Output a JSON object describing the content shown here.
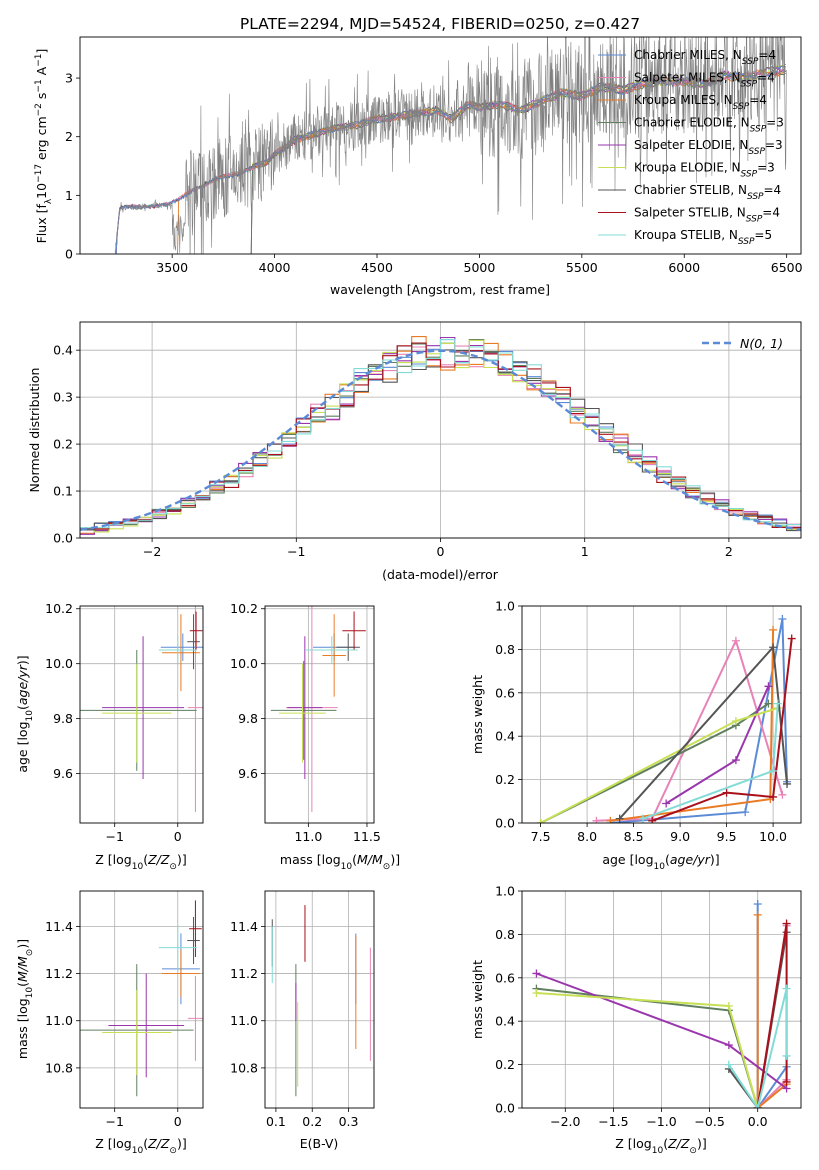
{
  "figure": {
    "suptitle": "PLATE=2294, MJD=54524, FIBERID=0250, z=0.427"
  },
  "colors": {
    "chabrier_miles": "#5b8bd6",
    "salpeter_miles": "#e883b8",
    "kroupa_miles": "#ea7b25",
    "chabrier_elodie": "#5f7f5f",
    "salpeter_elodie": "#9a35ad",
    "kroupa_elodie": "#c7e056",
    "chabrier_stelib": "#555555",
    "salpeter_stelib": "#a8101c",
    "kroupa_stelib": "#83dbd6",
    "data_spectrum": "#808080",
    "normal_curve": "#5b8bd6"
  },
  "chart_data": [
    {
      "id": "spectrum",
      "type": "line",
      "title": "",
      "xlabel": "wavelength [Angstrom, rest frame]",
      "ylabel": "Flux [f_λ 10^-17 erg cm^-2 s^-1 A^-1]",
      "xlim": [
        3050,
        6570
      ],
      "ylim": [
        0,
        3.7
      ],
      "xticks": [
        3500,
        4000,
        4500,
        5000,
        5500,
        6000,
        6500
      ],
      "yticks": [
        0,
        1,
        2,
        3
      ],
      "grid": false,
      "legend_position": "top-right",
      "legend": [
        "Chabrier MILES, N_SSP=4",
        "Salpeter MILES, N_SSP=4",
        "Kroupa MILES, N_SSP=4",
        "Chabrier ELODIE, N_SSP=3",
        "Salpeter ELODIE, N_SSP=3",
        "Kroupa ELODIE, N_SSP=3",
        "Chabrier STELIB, N_SSP=4",
        "Salpeter STELIB, N_SSP=4",
        "Kroupa STELIB, N_SSP=5"
      ],
      "model_continuum": {
        "x": [
          3220,
          3245,
          3300,
          3400,
          3480,
          3520,
          3600,
          3700,
          3800,
          3900,
          3960,
          4000,
          4100,
          4200,
          4300,
          4400,
          4500,
          4600,
          4700,
          4800,
          4860,
          4950,
          5000,
          5100,
          5200,
          5300,
          5400,
          5500,
          5600,
          5700,
          5800,
          5900,
          6000,
          6100,
          6200,
          6300,
          6400,
          6500
        ],
        "y": [
          0.0,
          0.78,
          0.8,
          0.82,
          0.84,
          0.9,
          1.1,
          1.25,
          1.35,
          1.5,
          1.55,
          1.7,
          1.95,
          2.05,
          2.15,
          2.2,
          2.3,
          2.35,
          2.4,
          2.45,
          2.3,
          2.55,
          2.5,
          2.55,
          2.45,
          2.6,
          2.75,
          2.7,
          2.85,
          2.8,
          2.9,
          2.95,
          2.95,
          2.9,
          3.05,
          3.0,
          3.1,
          3.15
        ]
      }
    },
    {
      "id": "residuals",
      "type": "bar",
      "title": "",
      "xlabel": "(data-model)/error",
      "ylabel": "Normed distribution",
      "xlim": [
        -2.5,
        2.5
      ],
      "ylim": [
        0,
        0.46
      ],
      "xticks": [
        -2,
        -1,
        0,
        1,
        2
      ],
      "xticklabels": [
        "−2",
        "−1",
        "0",
        "1",
        "2"
      ],
      "yticks": [
        0.0,
        0.1,
        0.2,
        0.3,
        0.4
      ],
      "yticklabels": [
        "0.0",
        "0.1",
        "0.2",
        "0.3",
        "0.4"
      ],
      "grid": true,
      "legend_position": "top-right",
      "normal_label": "N(0, 1)",
      "bin_width": 0.1,
      "bin_start": -2.5,
      "bins": 50
    },
    {
      "id": "age_vs_Z",
      "type": "scatter",
      "xlabel": "Z [log10(Z/Z⊙)]",
      "ylabel": "age [log10(age/yr)]",
      "xlim": [
        -1.55,
        0.4
      ],
      "ylim": [
        9.42,
        10.21
      ],
      "xticks": [
        -1,
        0
      ],
      "xticklabels": [
        "−1",
        "0"
      ],
      "yticks": [
        9.6,
        9.8,
        10.0,
        10.2
      ],
      "yticklabels": [
        "9.6",
        "9.8",
        "10.0",
        "10.2"
      ],
      "grid": true,
      "points": [
        {
          "model": "chabrier_miles",
          "x": 0.08,
          "xerr": 0.35,
          "y": 10.06,
          "yerr": 0.05
        },
        {
          "model": "salpeter_miles",
          "x": 0.28,
          "xerr": 0.12,
          "y": 9.84,
          "yerr": 0.38
        },
        {
          "model": "kroupa_miles",
          "x": 0.05,
          "xerr": 0.3,
          "y": 10.04,
          "yerr": 0.14
        },
        {
          "model": "chabrier_elodie",
          "x": -0.65,
          "xerr": 0.95,
          "y": 9.83,
          "yerr": 0.22
        },
        {
          "model": "salpeter_elodie",
          "x": -0.55,
          "xerr": 0.65,
          "y": 9.84,
          "yerr": 0.26
        },
        {
          "model": "kroupa_elodie",
          "x": -0.65,
          "xerr": 0.55,
          "y": 9.82,
          "yerr": 0.18
        },
        {
          "model": "chabrier_stelib",
          "x": 0.25,
          "xerr": 0.1,
          "y": 10.08,
          "yerr": 0.1
        },
        {
          "model": "salpeter_stelib",
          "x": 0.29,
          "xerr": 0.1,
          "y": 10.12,
          "yerr": 0.07
        },
        {
          "model": "kroupa_stelib",
          "x": 0.0,
          "xerr": 0.3,
          "y": 10.05,
          "yerr": 0.05
        }
      ]
    },
    {
      "id": "age_vs_mass",
      "type": "scatter",
      "xlabel": "mass [log10(M/M⊙)]",
      "ylabel": "",
      "xlim": [
        10.63,
        11.56
      ],
      "ylim": [
        9.42,
        10.21
      ],
      "xticks": [
        11.0,
        11.5
      ],
      "xticklabels": [
        "11.0",
        "11.5"
      ],
      "yticks": [
        9.6,
        9.8,
        10.0,
        10.2
      ],
      "yticklabels": [
        "9.6",
        "9.8",
        "10.0",
        "10.2"
      ],
      "grid": true,
      "points": [
        {
          "model": "chabrier_miles",
          "x": 11.22,
          "xerr": 0.18,
          "y": 10.06,
          "yerr": 0.05
        },
        {
          "model": "salpeter_miles",
          "x": 11.03,
          "xerr": 0.22,
          "y": 9.84,
          "yerr": 0.38
        },
        {
          "model": "kroupa_miles",
          "x": 11.22,
          "xerr": 0.1,
          "y": 10.03,
          "yerr": 0.15
        },
        {
          "model": "chabrier_elodie",
          "x": 10.96,
          "xerr": 0.28,
          "y": 9.83,
          "yerr": 0.18
        },
        {
          "model": "salpeter_elodie",
          "x": 10.97,
          "xerr": 0.15,
          "y": 9.84,
          "yerr": 0.26
        },
        {
          "model": "kroupa_elodie",
          "x": 10.95,
          "xerr": 0.2,
          "y": 9.82,
          "yerr": 0.18
        },
        {
          "model": "chabrier_stelib",
          "x": 11.34,
          "xerr": 0.1,
          "y": 10.06,
          "yerr": 0.05
        },
        {
          "model": "salpeter_stelib",
          "x": 11.39,
          "xerr": 0.1,
          "y": 10.12,
          "yerr": 0.07
        },
        {
          "model": "kroupa_stelib",
          "x": 11.2,
          "xerr": 0.22,
          "y": 10.05,
          "yerr": 0.05
        }
      ]
    },
    {
      "id": "mass_weight_vs_age",
      "type": "line",
      "xlabel": "age [log10(age/yr)]",
      "ylabel": "mass weight",
      "xlim": [
        7.3,
        10.3
      ],
      "ylim": [
        0,
        1.0
      ],
      "xticks": [
        7.5,
        8.0,
        8.5,
        9.0,
        9.5,
        10.0
      ],
      "xticklabels": [
        "7.5",
        "8.0",
        "8.5",
        "9.0",
        "9.5",
        "10.0"
      ],
      "yticks": [
        0,
        0.2,
        0.4,
        0.6,
        0.8,
        1.0
      ],
      "yticklabels": [
        "0.0",
        "0.2",
        "0.4",
        "0.6",
        "0.8",
        "1.0"
      ],
      "grid": true,
      "series": [
        {
          "model": "chabrier_miles",
          "points": [
            [
              8.25,
              0.0
            ],
            [
              9.7,
              0.05
            ],
            [
              10.1,
              0.94
            ],
            [
              10.15,
              0.19
            ]
          ]
        },
        {
          "model": "salpeter_miles",
          "points": [
            [
              8.1,
              0.01
            ],
            [
              8.7,
              0.02
            ],
            [
              9.6,
              0.84
            ],
            [
              10.1,
              0.13
            ]
          ]
        },
        {
          "model": "kroupa_miles",
          "points": [
            [
              8.25,
              0.01
            ],
            [
              9.97,
              0.11
            ],
            [
              10.0,
              0.89
            ]
          ]
        },
        {
          "model": "chabrier_elodie",
          "points": [
            [
              7.5,
              0.0
            ],
            [
              9.6,
              0.45
            ],
            [
              9.95,
              0.55
            ]
          ]
        },
        {
          "model": "salpeter_elodie",
          "points": [
            [
              8.85,
              0.09
            ],
            [
              9.6,
              0.29
            ],
            [
              9.95,
              0.63
            ]
          ]
        },
        {
          "model": "kroupa_elodie",
          "points": [
            [
              7.5,
              0.0
            ],
            [
              9.6,
              0.47
            ],
            [
              10.05,
              0.53
            ]
          ]
        },
        {
          "model": "chabrier_stelib",
          "points": [
            [
              8.35,
              0.02
            ],
            [
              10.0,
              0.81
            ],
            [
              10.15,
              0.18
            ]
          ]
        },
        {
          "model": "salpeter_stelib",
          "points": [
            [
              8.7,
              0.01
            ],
            [
              9.5,
              0.14
            ],
            [
              10.0,
              0.12
            ],
            [
              10.2,
              0.85
            ]
          ]
        },
        {
          "model": "kroupa_stelib",
          "points": [
            [
              8.6,
              0.02
            ],
            [
              10.0,
              0.24
            ],
            [
              10.05,
              0.55
            ]
          ]
        }
      ]
    },
    {
      "id": "mass_vs_Z",
      "type": "scatter",
      "xlabel": "Z [log10(Z/Z⊙)]",
      "ylabel": "mass [log10(M/M⊙)]",
      "xlim": [
        -1.55,
        0.4
      ],
      "ylim": [
        10.63,
        11.55
      ],
      "xticks": [
        -1,
        0
      ],
      "xticklabels": [
        "−1",
        "0"
      ],
      "yticks": [
        10.8,
        11.0,
        11.2,
        11.4
      ],
      "yticklabels": [
        "10.8",
        "11.0",
        "11.2",
        "11.4"
      ],
      "grid": true,
      "points": [
        {
          "model": "chabrier_miles",
          "x": 0.05,
          "xerr": 0.3,
          "y": 11.22,
          "yerr": 0.15
        },
        {
          "model": "salpeter_miles",
          "x": 0.28,
          "xerr": 0.12,
          "y": 11.01,
          "yerr": 0.18
        },
        {
          "model": "kroupa_miles",
          "x": 0.05,
          "xerr": 0.3,
          "y": 11.2,
          "yerr": 0.1
        },
        {
          "model": "chabrier_elodie",
          "x": -0.65,
          "xerr": 0.9,
          "y": 10.96,
          "yerr": 0.28
        },
        {
          "model": "salpeter_elodie",
          "x": -0.5,
          "xerr": 0.6,
          "y": 10.98,
          "yerr": 0.22
        },
        {
          "model": "kroupa_elodie",
          "x": -0.65,
          "xerr": 0.55,
          "y": 10.95,
          "yerr": 0.18
        },
        {
          "model": "chabrier_stelib",
          "x": 0.25,
          "xerr": 0.1,
          "y": 11.34,
          "yerr": 0.1
        },
        {
          "model": "salpeter_stelib",
          "x": 0.28,
          "xerr": 0.1,
          "y": 11.39,
          "yerr": 0.12
        },
        {
          "model": "kroupa_stelib",
          "x": 0.0,
          "xerr": 0.3,
          "y": 11.31,
          "yerr": 0.1
        }
      ]
    },
    {
      "id": "mass_vs_ebv",
      "type": "scatter",
      "xlabel": "E(B-V)",
      "ylabel": "",
      "xlim": [
        0.07,
        0.37
      ],
      "ylim": [
        10.63,
        11.55
      ],
      "xticks": [
        0.1,
        0.2,
        0.3
      ],
      "xticklabels": [
        "0.1",
        "0.2",
        "0.3"
      ],
      "yticks": [
        10.8,
        11.0,
        11.2,
        11.4
      ],
      "yticklabels": [
        "10.8",
        "11.0",
        "11.2",
        "11.4"
      ],
      "grid": true,
      "points": [
        {
          "model": "chabrier_miles",
          "x": 0.32,
          "y": 11.22,
          "yerr": 0.15
        },
        {
          "model": "salpeter_miles",
          "x": 0.36,
          "y": 11.07,
          "yerr": 0.24
        },
        {
          "model": "kroupa_miles",
          "x": 0.32,
          "y": 11.12,
          "yerr": 0.24
        },
        {
          "model": "chabrier_elodie",
          "x": 0.155,
          "y": 10.96,
          "yerr": 0.28
        },
        {
          "model": "salpeter_elodie",
          "x": 0.155,
          "y": 11.08,
          "yerr": 0.08
        },
        {
          "model": "kroupa_elodie",
          "x": 0.16,
          "y": 10.9,
          "yerr": 0.18
        },
        {
          "model": "chabrier_stelib",
          "x": 0.09,
          "y": 11.33,
          "yerr": 0.1
        },
        {
          "model": "salpeter_stelib",
          "x": 0.18,
          "y": 11.37,
          "yerr": 0.12
        },
        {
          "model": "kroupa_stelib",
          "x": 0.09,
          "y": 11.28,
          "yerr": 0.12
        }
      ]
    },
    {
      "id": "mass_weight_vs_Z",
      "type": "line",
      "xlabel": "Z [log10(Z/Z⊙)]",
      "ylabel": "mass weight",
      "xlim": [
        -2.45,
        0.45
      ],
      "ylim": [
        0,
        1.0
      ],
      "xticks": [
        -2.0,
        -1.5,
        -1.0,
        -0.5,
        0.0
      ],
      "xticklabels": [
        "−2.0",
        "−1.5",
        "−1.0",
        "−0.5",
        "0.0"
      ],
      "yticks": [
        0,
        0.2,
        0.4,
        0.6,
        0.8,
        1.0
      ],
      "yticklabels": [
        "0.0",
        "0.2",
        "0.4",
        "0.6",
        "0.8",
        "1.0"
      ],
      "grid": true,
      "series": [
        {
          "model": "chabrier_miles",
          "points": [
            [
              0.0,
              0.94
            ],
            [
              0.0,
              0.0
            ],
            [
              0.3,
              0.19
            ]
          ]
        },
        {
          "model": "salpeter_miles",
          "points": [
            [
              0.3,
              0.13
            ],
            [
              0.0,
              0.0
            ],
            [
              0.3,
              0.84
            ]
          ]
        },
        {
          "model": "kroupa_miles",
          "points": [
            [
              0.0,
              0.89
            ],
            [
              0.0,
              0.0
            ],
            [
              0.3,
              0.11
            ]
          ]
        },
        {
          "model": "chabrier_elodie",
          "points": [
            [
              -2.3,
              0.55
            ],
            [
              -0.3,
              0.45
            ],
            [
              0.0,
              0.0
            ]
          ]
        },
        {
          "model": "salpeter_elodie",
          "points": [
            [
              -2.3,
              0.62
            ],
            [
              -0.3,
              0.29
            ],
            [
              0.3,
              0.09
            ]
          ]
        },
        {
          "model": "kroupa_elodie",
          "points": [
            [
              -2.3,
              0.53
            ],
            [
              -0.3,
              0.47
            ],
            [
              0.0,
              0.0
            ]
          ]
        },
        {
          "model": "chabrier_stelib",
          "points": [
            [
              -0.3,
              0.18
            ],
            [
              0.0,
              0.0
            ],
            [
              0.3,
              0.81
            ]
          ]
        },
        {
          "model": "salpeter_stelib",
          "points": [
            [
              0.0,
              0.0
            ],
            [
              0.3,
              0.85
            ],
            [
              0.3,
              0.12
            ]
          ]
        },
        {
          "model": "kroupa_stelib",
          "points": [
            [
              -0.3,
              0.2
            ],
            [
              0.0,
              0.0
            ],
            [
              0.3,
              0.55
            ],
            [
              0.3,
              0.24
            ]
          ]
        }
      ]
    }
  ]
}
